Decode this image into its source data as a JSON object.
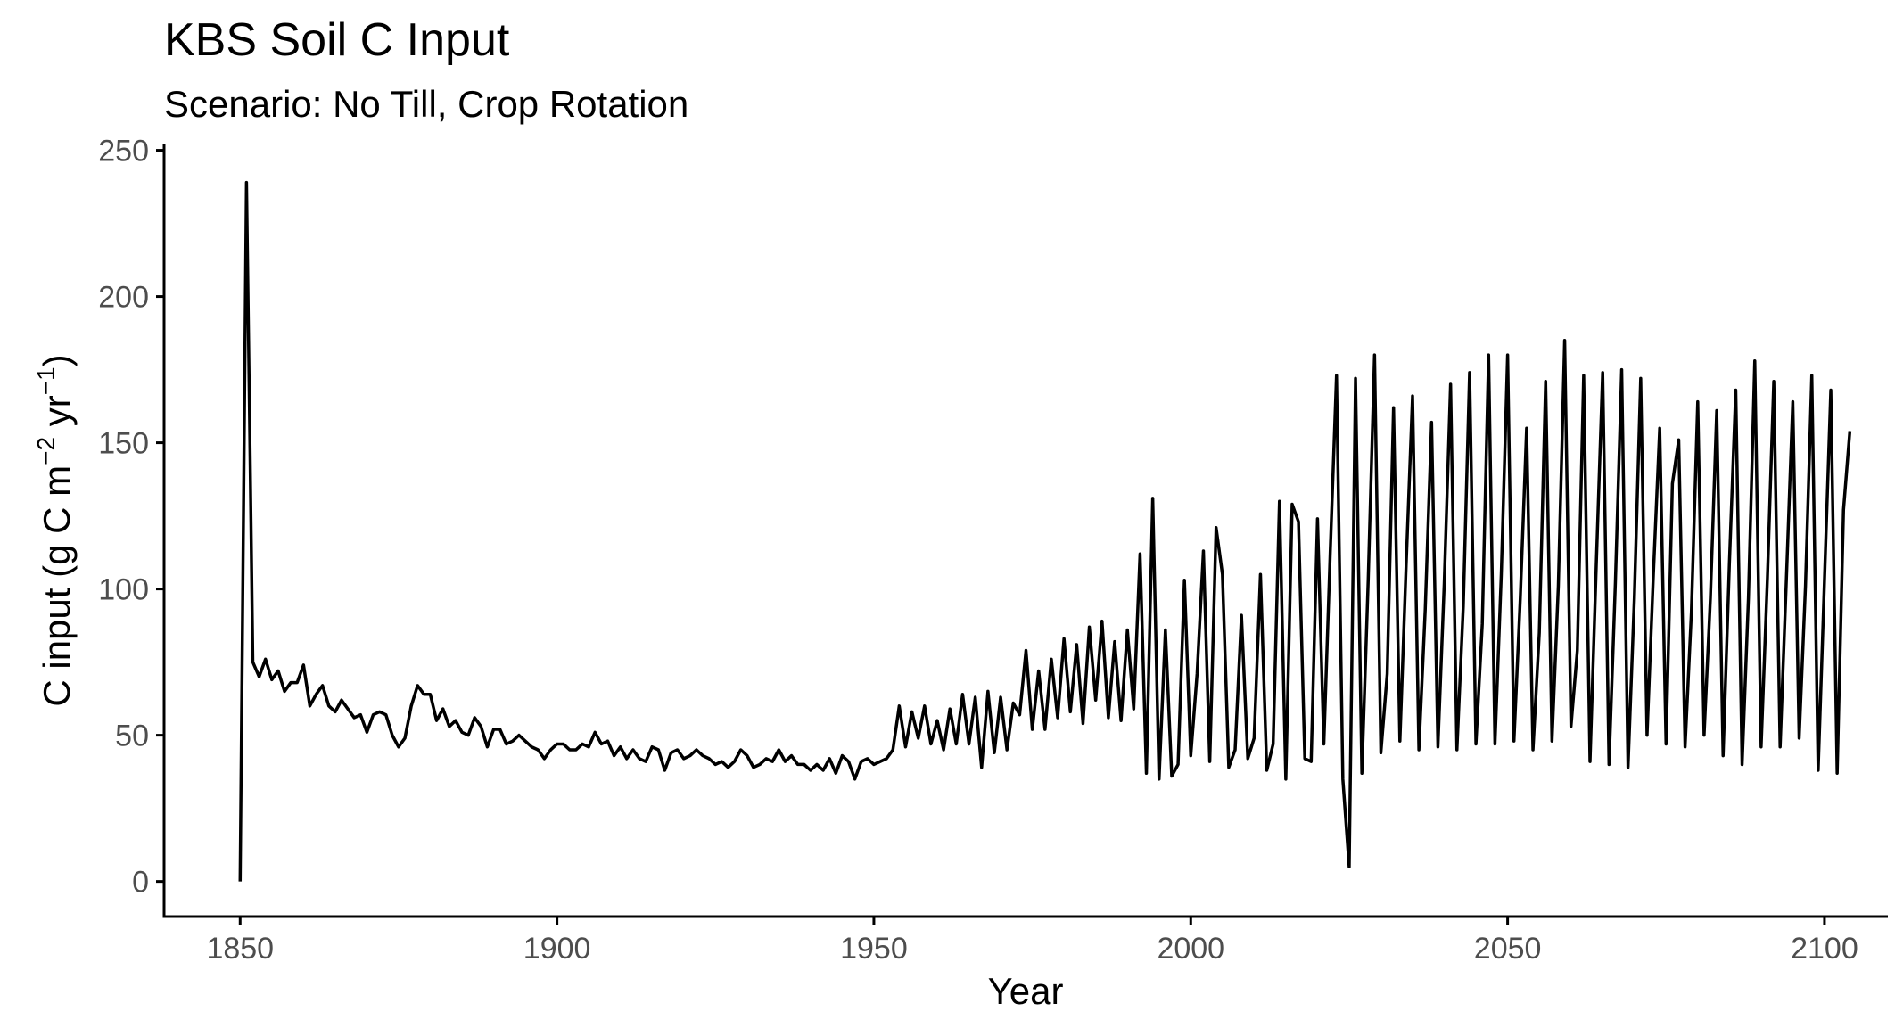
{
  "chart_data": {
    "type": "line",
    "title": "KBS Soil C Input",
    "subtitle": "Scenario: No Till, Crop Rotation",
    "xlabel": "Year",
    "ylabel": {
      "prefix": "C input (g C m",
      "sup1": "−2",
      "middle": " yr",
      "sup2": "−1",
      "suffix": ")"
    },
    "xlim": [
      1838,
      2110
    ],
    "ylim": [
      -12,
      252
    ],
    "x_ticks": [
      1850,
      1900,
      1950,
      2000,
      2050,
      2100
    ],
    "y_ticks": [
      0,
      50,
      100,
      150,
      200,
      250
    ],
    "grid": false,
    "legend": "none",
    "series": [
      {
        "color": "#000000",
        "x_start": 1850,
        "x_step": 1,
        "values": [
          0,
          239,
          75,
          70,
          76,
          69,
          72,
          65,
          68,
          68,
          74,
          60,
          64,
          67,
          60,
          58,
          62,
          59,
          56,
          57,
          51,
          57,
          58,
          57,
          50,
          46,
          49,
          60,
          67,
          64,
          64,
          55,
          59,
          53,
          55,
          51,
          50,
          56,
          53,
          46,
          52,
          52,
          47,
          48,
          50,
          48,
          46,
          45,
          42,
          45,
          47,
          47,
          45,
          45,
          47,
          46,
          51,
          47,
          48,
          43,
          46,
          42,
          45,
          42,
          41,
          46,
          45,
          38,
          44,
          45,
          42,
          43,
          45,
          43,
          42,
          40,
          41,
          39,
          41,
          45,
          43,
          39,
          40,
          42,
          41,
          45,
          41,
          43,
          40,
          40,
          38,
          40,
          38,
          42,
          37,
          43,
          41,
          35,
          41,
          42,
          40,
          41,
          42,
          45,
          60,
          46,
          58,
          49,
          60,
          47,
          55,
          45,
          59,
          47,
          64,
          47,
          63,
          39,
          65,
          44,
          63,
          45,
          61,
          57,
          79,
          52,
          72,
          52,
          76,
          56,
          83,
          58,
          81,
          54,
          87,
          62,
          89,
          56,
          82,
          55,
          86,
          59,
          112,
          37,
          131,
          35,
          86,
          36,
          40,
          103,
          43,
          71,
          113,
          41,
          121,
          105,
          39,
          45,
          91,
          42,
          49,
          105,
          38,
          47,
          130,
          35,
          129,
          123,
          42,
          41,
          124,
          47,
          112,
          173,
          35,
          5,
          172,
          37,
          103,
          180,
          44,
          71,
          162,
          48,
          109,
          166,
          45,
          93,
          157,
          46,
          102,
          170,
          45,
          94,
          174,
          47,
          88,
          180,
          47,
          105,
          180,
          48,
          97,
          155,
          45,
          85,
          171,
          48,
          101,
          185,
          53,
          79,
          173,
          41,
          109,
          174,
          40,
          102,
          175,
          39,
          97,
          172,
          50,
          105,
          155,
          47,
          136,
          151,
          46,
          92,
          164,
          50,
          97,
          161,
          43,
          109,
          168,
          40,
          97,
          178,
          46,
          104,
          171,
          46,
          104,
          164,
          49,
          101,
          173,
          38,
          103,
          168,
          37,
          127,
          154
        ]
      }
    ]
  }
}
